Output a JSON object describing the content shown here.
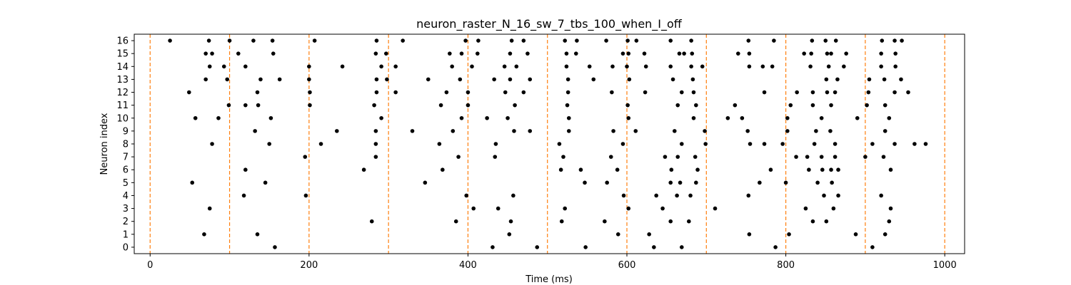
{
  "chart_data": {
    "type": "scatter",
    "title": "neuron_raster_N_16_sw_7_tbs_100_when_I_off",
    "xlabel": "Time (ms)",
    "ylabel": "Neuron index",
    "xlim": [
      -20,
      1025
    ],
    "ylim": [
      -0.5,
      16.5
    ],
    "xticks": [
      0,
      200,
      400,
      600,
      800,
      1000
    ],
    "yticks": [
      0,
      1,
      2,
      3,
      4,
      5,
      6,
      7,
      8,
      9,
      10,
      11,
      12,
      13,
      14,
      15,
      16
    ],
    "grid": false,
    "marker_color": "#000000",
    "vline_color": "#ff7f0e",
    "vlines": [
      0,
      100,
      200,
      300,
      400,
      500,
      600,
      700,
      800,
      900,
      1000
    ],
    "spikes": [
      {
        "neuron": 16,
        "times": [
          25,
          74,
          100,
          130,
          154,
          207,
          285,
          318,
          397,
          413,
          455,
          470,
          522,
          537,
          574,
          601,
          612,
          655,
          681,
          753,
          785,
          833,
          850,
          863,
          921,
          937,
          946
        ]
      },
      {
        "neuron": 15,
        "times": [
          70,
          78,
          111,
          155,
          284,
          297,
          377,
          392,
          412,
          453,
          475,
          524,
          536,
          595,
          602,
          622,
          666,
          672,
          682,
          740,
          754,
          823,
          832,
          852,
          857,
          876,
          920,
          938
        ]
      },
      {
        "neuron": 14,
        "times": [
          75,
          93,
          120,
          200,
          242,
          291,
          309,
          380,
          405,
          446,
          461,
          524,
          553,
          582,
          600,
          624,
          655,
          681,
          695,
          754,
          771,
          783,
          831,
          854,
          873,
          920,
          938
        ]
      },
      {
        "neuron": 13,
        "times": [
          70,
          97,
          139,
          163,
          200,
          285,
          298,
          350,
          390,
          433,
          453,
          478,
          526,
          558,
          603,
          658,
          683,
          851,
          865,
          905,
          924,
          945
        ]
      },
      {
        "neuron": 12,
        "times": [
          49,
          135,
          201,
          285,
          309,
          373,
          400,
          447,
          470,
          526,
          581,
          623,
          669,
          684,
          773,
          814,
          834,
          852,
          862,
          904,
          937,
          954
        ]
      },
      {
        "neuron": 11,
        "times": [
          99,
          120,
          136,
          201,
          282,
          366,
          400,
          459,
          525,
          601,
          664,
          687,
          736,
          806,
          834,
          857,
          902,
          925
        ]
      },
      {
        "neuron": 10,
        "times": [
          57,
          86,
          152,
          291,
          392,
          424,
          450,
          527,
          602,
          684,
          727,
          745,
          802,
          845,
          890,
          930
        ]
      },
      {
        "neuron": 9,
        "times": [
          132,
          235,
          284,
          330,
          381,
          458,
          478,
          527,
          583,
          611,
          660,
          698,
          752,
          802,
          838,
          856,
          925
        ]
      },
      {
        "neuron": 8,
        "times": [
          78,
          150,
          215,
          284,
          364,
          435,
          515,
          595,
          669,
          699,
          755,
          773,
          796,
          836,
          862,
          909,
          937,
          962,
          976
        ]
      },
      {
        "neuron": 7,
        "times": [
          195,
          284,
          388,
          434,
          520,
          580,
          648,
          664,
          686,
          813,
          827,
          845,
          862,
          900,
          923
        ]
      },
      {
        "neuron": 6,
        "times": [
          120,
          269,
          368,
          517,
          542,
          588,
          656,
          689,
          781,
          829,
          846,
          857,
          866,
          932
        ]
      },
      {
        "neuron": 5,
        "times": [
          53,
          145,
          346,
          547,
          575,
          655,
          667,
          687,
          767,
          800,
          840,
          858
        ]
      },
      {
        "neuron": 4,
        "times": [
          118,
          196,
          398,
          457,
          596,
          637,
          663,
          680,
          753,
          848,
          866,
          920
        ]
      },
      {
        "neuron": 3,
        "times": [
          75,
          407,
          438,
          522,
          602,
          645,
          711,
          825,
          860,
          932
        ]
      },
      {
        "neuron": 2,
        "times": [
          279,
          385,
          454,
          518,
          572,
          655,
          678,
          834,
          851,
          930
        ]
      },
      {
        "neuron": 1,
        "times": [
          68,
          135,
          452,
          589,
          628,
          754,
          804,
          888,
          925
        ]
      },
      {
        "neuron": 0,
        "times": [
          157,
          431,
          487,
          548,
          634,
          669,
          787,
          909
        ]
      }
    ]
  }
}
